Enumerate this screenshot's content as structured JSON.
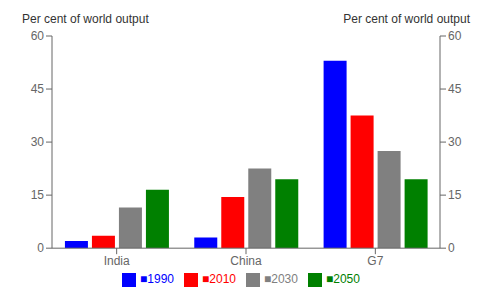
{
  "chart_data": {
    "type": "bar",
    "categories": [
      "India",
      "China",
      "G7"
    ],
    "series": [
      {
        "name": "■1990",
        "color": "#0000ff",
        "values": [
          2.0,
          3.0,
          53.0
        ]
      },
      {
        "name": "■2010",
        "color": "#ff0000",
        "values": [
          3.5,
          14.5,
          37.5
        ]
      },
      {
        "name": "■2030",
        "color": "#808080",
        "values": [
          11.5,
          22.5,
          27.5
        ]
      },
      {
        "name": "■2050",
        "color": "#008000",
        "values": [
          16.5,
          19.5,
          19.5
        ]
      }
    ],
    "ylabel": "Per cent of world output",
    "y2label": "Per cent of world output",
    "ylim": [
      0,
      60
    ],
    "yticks": [
      0,
      15,
      30,
      45,
      60
    ],
    "y2lim": [
      0,
      60
    ],
    "y2ticks": [
      0,
      15,
      30,
      45,
      60
    ],
    "grid": false,
    "legend": "bottom"
  }
}
